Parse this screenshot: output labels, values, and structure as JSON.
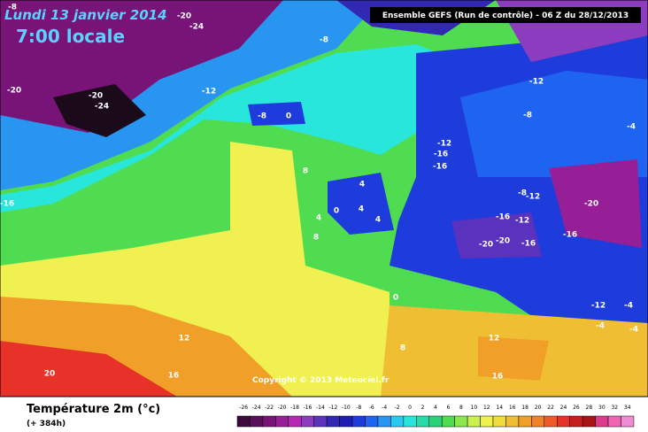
{
  "header": {
    "date": "Lundi 13 janvier 2014",
    "time": "7:00 locale",
    "run": "Ensemble GEFS (Run de contrôle)  -  06 Z du 28/12/2013",
    "copyright": "Copyright © 2013 Meteociel.fr"
  },
  "legend": {
    "title": "Température 2m (°c)",
    "lead": "(+ 384h)",
    "ticks": [
      -26,
      -24,
      -22,
      -20,
      -18,
      -16,
      -14,
      -12,
      -10,
      -8,
      -6,
      -4,
      -2,
      0,
      2,
      4,
      6,
      8,
      10,
      12,
      14,
      16,
      18,
      20,
      22,
      24,
      26,
      28,
      30,
      32,
      34
    ],
    "colors": [
      "#3c0a3c",
      "#5a0f5a",
      "#781478",
      "#961e96",
      "#b428b4",
      "#8c3cbe",
      "#5a32be",
      "#3228b4",
      "#1e1eb4",
      "#1e3cdc",
      "#1e64f0",
      "#2896f0",
      "#28c8f0",
      "#28e6dc",
      "#28dcaa",
      "#28d278",
      "#50dc50",
      "#8ce650",
      "#c8f050",
      "#f0f050",
      "#f0dc3c",
      "#f0be32",
      "#f0a028",
      "#f08228",
      "#f05a28",
      "#e63228",
      "#c81e1e",
      "#aa1414",
      "#dc3c8c",
      "#f064b4",
      "#f08cd2"
    ]
  },
  "map_labels": [
    -8,
    -20,
    -24,
    -8,
    -20,
    -20,
    -24,
    -12,
    -12,
    -8,
    0,
    -8,
    -4,
    -12,
    -16,
    -16,
    8,
    4,
    -8,
    -12,
    -20,
    -16,
    0,
    4,
    4,
    4,
    -16,
    -12,
    -16,
    -20,
    -20,
    -16,
    8,
    0,
    -12,
    -4,
    -4,
    -4,
    12,
    12,
    8,
    20,
    16,
    16
  ]
}
